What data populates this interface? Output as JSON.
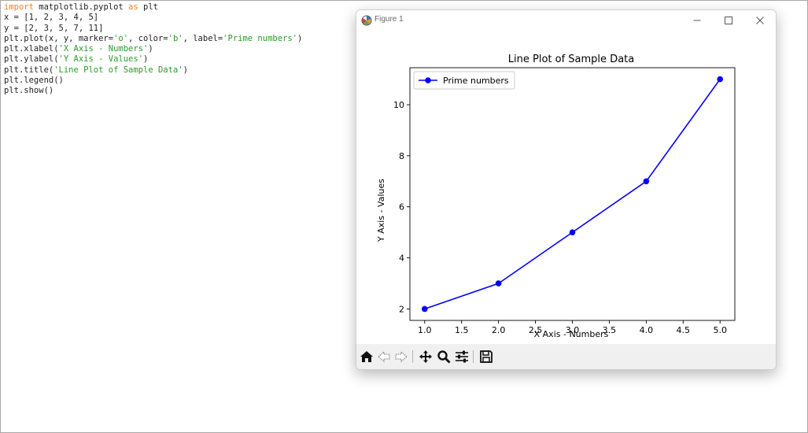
{
  "editor": {
    "lines": [
      [
        {
          "t": "import",
          "c": "kw"
        },
        {
          "t": " matplotlib.pyplot ",
          "c": ""
        },
        {
          "t": "as",
          "c": "kw"
        },
        {
          "t": " plt",
          "c": ""
        }
      ],
      [
        {
          "t": "x = [1, 2, 3, 4, 5]",
          "c": ""
        }
      ],
      [
        {
          "t": "y = [2, 3, 5, 7, 11]",
          "c": ""
        }
      ],
      [
        {
          "t": "plt.plot(x, y, marker=",
          "c": ""
        },
        {
          "t": "'o'",
          "c": "str"
        },
        {
          "t": ", color=",
          "c": ""
        },
        {
          "t": "'b'",
          "c": "str"
        },
        {
          "t": ", label=",
          "c": ""
        },
        {
          "t": "'Prime numbers'",
          "c": "str"
        },
        {
          "t": ")",
          "c": ""
        }
      ],
      [
        {
          "t": "plt.xlabel(",
          "c": ""
        },
        {
          "t": "'X Axis - Numbers'",
          "c": "str"
        },
        {
          "t": ")",
          "c": ""
        }
      ],
      [
        {
          "t": "plt.ylabel(",
          "c": ""
        },
        {
          "t": "'Y Axis - Values'",
          "c": "str"
        },
        {
          "t": ")",
          "c": ""
        }
      ],
      [
        {
          "t": "plt.title(",
          "c": ""
        },
        {
          "t": "'Line Plot of Sample Data'",
          "c": "str"
        },
        {
          "t": ")",
          "c": ""
        }
      ],
      [
        {
          "t": "plt.legend()",
          "c": ""
        }
      ],
      [
        {
          "t": "plt.show()",
          "c": ""
        }
      ]
    ]
  },
  "window": {
    "title": "Figure 1",
    "app_icon": "matplotlib-figure-icon",
    "controls": [
      "minimize-icon",
      "maximize-icon",
      "close-icon"
    ]
  },
  "toolbar": {
    "buttons": [
      "home-icon",
      "back-arrow-icon",
      "forward-arrow-icon",
      "pan-icon",
      "zoom-icon",
      "configure-subplots-icon",
      "save-icon"
    ]
  },
  "colors": {
    "line": "#0000ff",
    "keyword": "#e8822a",
    "string": "#2b9a2b",
    "toolbar_bg": "#f0f0f0"
  },
  "chart_data": {
    "type": "line",
    "title": "Line Plot of Sample Data",
    "xlabel": "X Axis - Numbers",
    "ylabel": "Y Axis - Values",
    "xlim": [
      0.8,
      5.2
    ],
    "ylim": [
      1.55,
      11.45
    ],
    "xticks": [
      1.0,
      1.5,
      2.0,
      2.5,
      3.0,
      3.5,
      4.0,
      4.5,
      5.0
    ],
    "xtick_labels": [
      "1.0",
      "1.5",
      "2.0",
      "2.5",
      "3.0",
      "3.5",
      "4.0",
      "4.5",
      "5.0"
    ],
    "yticks": [
      2,
      4,
      6,
      8,
      10
    ],
    "ytick_labels": [
      "2",
      "4",
      "6",
      "8",
      "10"
    ],
    "legend": "top-left",
    "grid": false,
    "series": [
      {
        "name": "Prime numbers",
        "x": [
          1,
          2,
          3,
          4,
          5
        ],
        "y": [
          2,
          3,
          5,
          7,
          11
        ],
        "marker": "o",
        "color": "#0000ff"
      }
    ]
  }
}
